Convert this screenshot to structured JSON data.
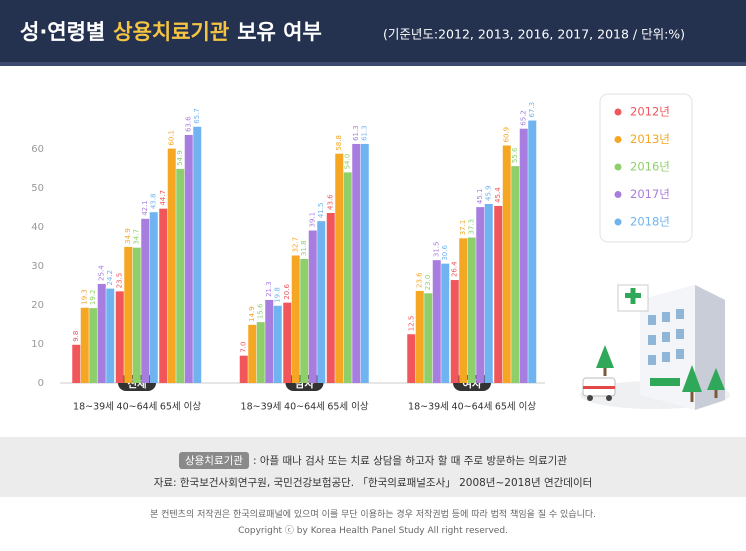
{
  "chart_data": {
    "type": "bar",
    "title": [
      "성·연령별",
      "상용치료기관",
      "보유 여부"
    ],
    "subtitle": "(기준년도:2012, 2013, 2016, 2017, 2018 / 단위:%)",
    "groups": [
      "전체",
      "남자",
      "여자"
    ],
    "categories": [
      "18~39세",
      "40~64세",
      "65세 이상",
      "18~39세",
      "40~64세",
      "65세 이상",
      "18~39세",
      "40~64세",
      "65세 이상"
    ],
    "series": [
      {
        "name": "2012년",
        "color": "#f0565a",
        "values": [
          9.8,
          23.5,
          44.7,
          7.0,
          20.6,
          43.6,
          12.5,
          26.4,
          45.4
        ],
        "value_labels": [
          "9.8",
          "23.5",
          "44.7",
          "7.0",
          "20.6",
          "43.6",
          "12.5",
          "26.4",
          "45.4"
        ]
      },
      {
        "name": "2013년",
        "color": "#f5a623",
        "values": [
          19.3,
          34.9,
          60.1,
          14.9,
          32.7,
          58.8,
          23.6,
          37.1,
          60.9
        ]
      },
      {
        "name": "2016년",
        "color": "#8fcf6b",
        "values": [
          19.2,
          34.7,
          54.9,
          15.6,
          31.8,
          54.0,
          23.0,
          37.3,
          55.6
        ],
        "value_labels": [
          "19.2",
          "34.7",
          "54.9",
          "15.6",
          "31.8",
          "54.0",
          "23.0",
          "37.3",
          "55.6"
        ]
      },
      {
        "name": "2017년",
        "color": "#a77de0",
        "values": [
          25.4,
          42.1,
          63.6,
          21.3,
          39.1,
          61.3,
          31.5,
          45.1,
          65.2
        ]
      },
      {
        "name": "2018년",
        "color": "#6fb4f0",
        "values": [
          24.2,
          43.8,
          65.7,
          19.8,
          41.5,
          61.3,
          30.6,
          45.9,
          67.3
        ]
      }
    ],
    "ylim": [
      0,
      70
    ],
    "yticks": [
      0,
      10,
      20,
      30,
      40,
      50,
      60
    ],
    "grid": false
  },
  "note": {
    "term": "상용치료기관",
    "definition": ": 아플 때나 검사 또는 치료 상담을 하고자 할 때 주로 방문하는 의료기관",
    "source": "자료: 한국보건사회연구원, 국민건강보험공단. 「한국의료패널조사」 2008년~2018년 연간데이터"
  },
  "copyright": [
    "본 컨텐츠의 저작권은 한국의료패널에 있으며 이를 무단 이용하는 경우 저작권법 등에 따라 법적 책임을 질 수 있습니다.",
    "Copyright ⓒ by Korea Health Panel Study All right reserved."
  ]
}
